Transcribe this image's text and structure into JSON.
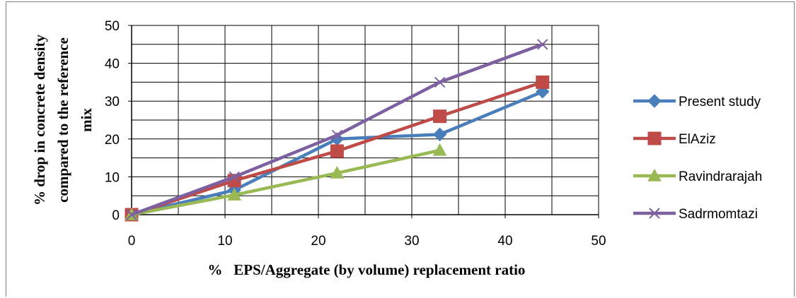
{
  "chart_data": {
    "type": "line",
    "title": "",
    "xlabel": "%   EPS/Aggregate (by volume) replacement ratio",
    "ylabel_lines": [
      "% drop in  concrete density",
      "compared to  the reference",
      "mix"
    ],
    "xlim": [
      0,
      50
    ],
    "ylim": [
      0,
      50
    ],
    "x_ticks": [
      0,
      10,
      20,
      30,
      40,
      50
    ],
    "y_ticks": [
      0,
      10,
      20,
      30,
      40,
      50
    ],
    "grid": true,
    "legend_position": "right",
    "series": [
      {
        "name": "Present study",
        "color": "#4a7ebb",
        "marker": "diamond",
        "x": [
          0,
          11,
          22,
          33,
          44
        ],
        "y": [
          0,
          6.5,
          20,
          21.2,
          32.5
        ]
      },
      {
        "name": "ElAziz",
        "color": "#be4b48",
        "marker": "square",
        "x": [
          0,
          11,
          22,
          33,
          44
        ],
        "y": [
          0,
          9,
          16.8,
          26,
          35
        ]
      },
      {
        "name": "Ravindrarajah",
        "color": "#98b954",
        "marker": "triangle",
        "x": [
          0,
          11,
          22,
          33
        ],
        "y": [
          0,
          5.2,
          11,
          17
        ]
      },
      {
        "name": "Sadrmomtazi",
        "color": "#7d60a0",
        "marker": "x",
        "x": [
          0,
          11,
          22,
          33,
          44
        ],
        "y": [
          0,
          10,
          21,
          35,
          45
        ]
      }
    ]
  }
}
